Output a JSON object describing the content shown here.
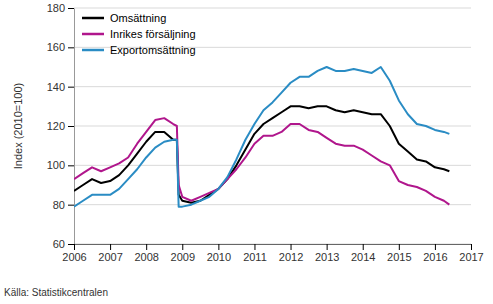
{
  "chart_data": {
    "type": "line",
    "y_label": "Index (2010=100)",
    "source": "Källa: Statistikcentralen",
    "x": [
      2006.0,
      2006.25,
      2006.5,
      2006.75,
      2007.0,
      2007.25,
      2007.5,
      2007.75,
      2008.0,
      2008.25,
      2008.5,
      2008.75,
      2008.85,
      2008.9,
      2009.0,
      2009.25,
      2009.5,
      2009.75,
      2010.0,
      2010.25,
      2010.5,
      2010.75,
      2011.0,
      2011.25,
      2011.5,
      2011.75,
      2012.0,
      2012.25,
      2012.5,
      2012.75,
      2013.0,
      2013.25,
      2013.5,
      2013.75,
      2014.0,
      2014.25,
      2014.5,
      2014.75,
      2015.0,
      2015.25,
      2015.5,
      2015.75,
      2016.0,
      2016.25,
      2016.4
    ],
    "series": [
      {
        "name": "Omsättning",
        "color": "#000000",
        "values": [
          87,
          90,
          93,
          91,
          92,
          95,
          100,
          106,
          112,
          117,
          117,
          113,
          113,
          85,
          82,
          81,
          82,
          85,
          88,
          93,
          100,
          108,
          116,
          121,
          124,
          127,
          130,
          130,
          129,
          130,
          130,
          128,
          127,
          128,
          127,
          126,
          126,
          120,
          111,
          107,
          103,
          102,
          99,
          98,
          97
        ]
      },
      {
        "name": "Inrikes försäljning",
        "color": "#b0168c",
        "values": [
          93,
          96,
          99,
          97,
          99,
          101,
          104,
          111,
          117,
          123,
          124,
          121,
          120,
          90,
          84,
          82,
          84,
          86,
          88,
          93,
          98,
          104,
          111,
          115,
          115,
          117,
          121,
          121,
          118,
          117,
          114,
          111,
          110,
          110,
          108,
          105,
          102,
          100,
          92,
          90,
          89,
          87,
          84,
          82,
          80
        ]
      },
      {
        "name": "Exportomsättning",
        "color": "#2a8cc4",
        "values": [
          79,
          82,
          85,
          85,
          85,
          88,
          93,
          98,
          104,
          109,
          112,
          113,
          113,
          79,
          79,
          80,
          82,
          84,
          88,
          94,
          103,
          113,
          121,
          128,
          132,
          137,
          142,
          145,
          145,
          148,
          150,
          148,
          148,
          149,
          148,
          147,
          150,
          143,
          133,
          126,
          121,
          120,
          118,
          117,
          116
        ]
      }
    ],
    "xlim": [
      2006,
      2017
    ],
    "xticks": [
      2006,
      2007,
      2008,
      2009,
      2010,
      2011,
      2012,
      2013,
      2014,
      2015,
      2016,
      2017
    ],
    "ylim": [
      60,
      180
    ],
    "yticks": [
      60,
      80,
      100,
      120,
      140,
      160,
      180
    ],
    "grid": true,
    "legend": "top-left"
  }
}
